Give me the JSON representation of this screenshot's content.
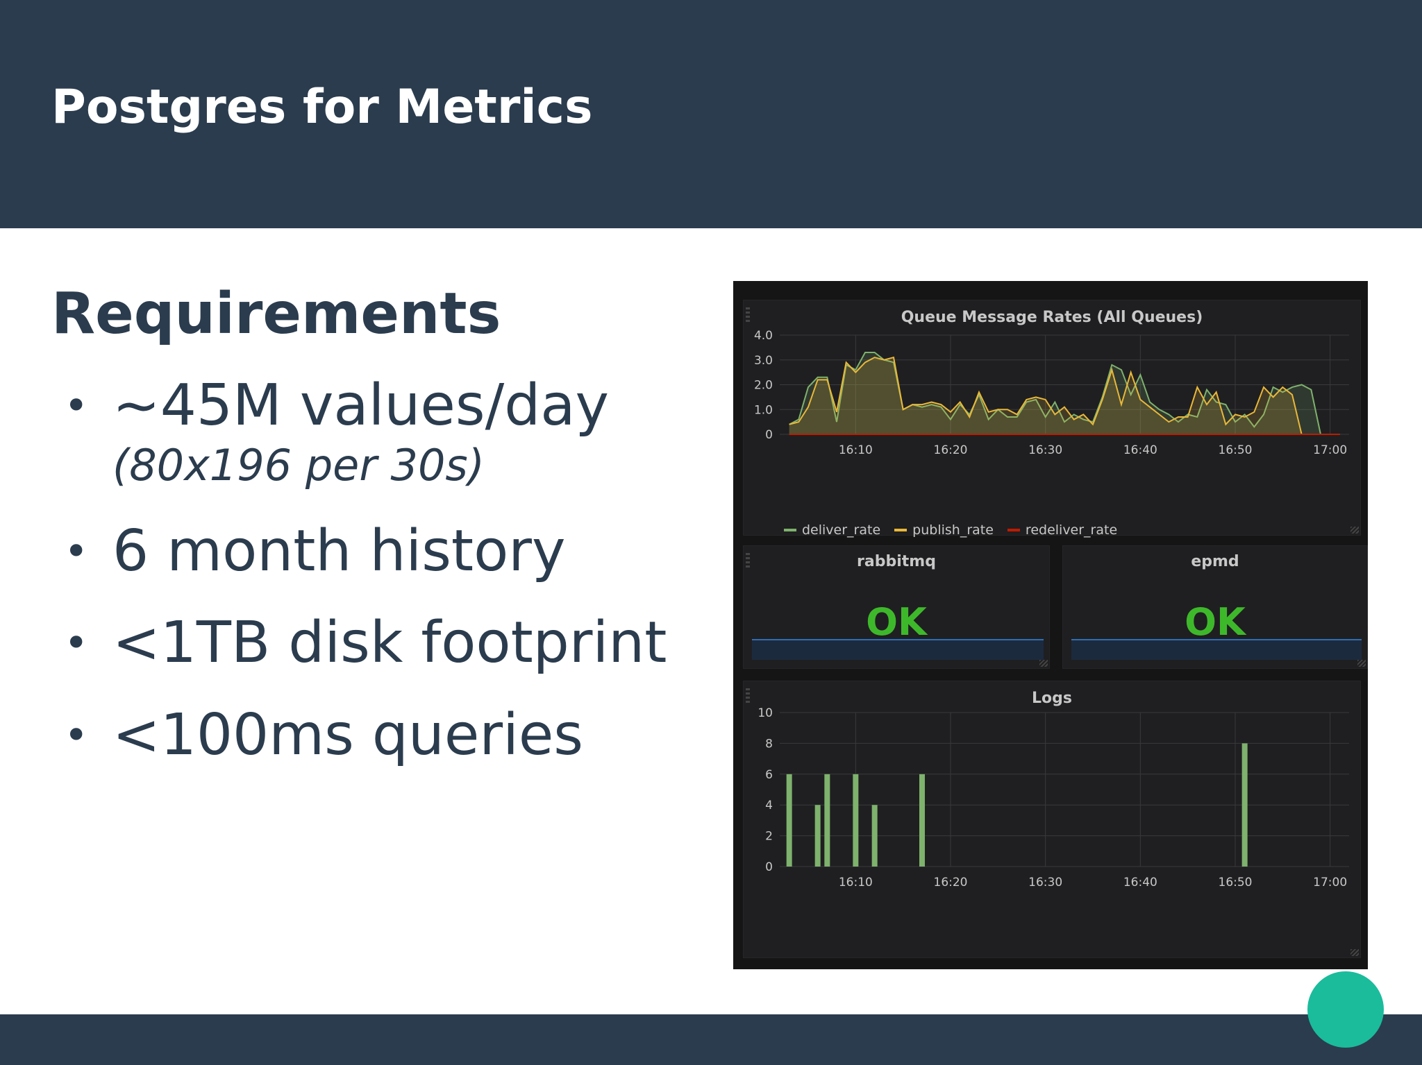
{
  "slide": {
    "title": "Postgres for Metrics",
    "heading": "Requirements",
    "bullets": [
      {
        "text": "~45M values/day",
        "sub": "(80x196 per 30s)"
      },
      {
        "text": "6 month history",
        "sub": ""
      },
      {
        "text": "<1TB disk footprint",
        "sub": ""
      },
      {
        "text": "<100ms queries",
        "sub": ""
      }
    ],
    "bullet_glyph": "•",
    "colors": {
      "band": "#2b3c4e",
      "accent": "#1abc9c",
      "text": "#2b3c4e"
    }
  },
  "dashboard": {
    "colors": {
      "bg": "#151516",
      "panel": "#1f1f21",
      "grid": "#3a3a3d",
      "text": "#c8c8c8",
      "ok": "#3eb82b"
    },
    "queue_panel": {
      "title": "Queue Message Rates (All Queues)"
    },
    "rabbitmq_panel": {
      "title": "rabbitmq",
      "value": "OK"
    },
    "epmd_panel": {
      "title": "epmd",
      "value": "OK"
    },
    "logs_panel": {
      "title": "Logs"
    }
  },
  "chart_data": [
    {
      "type": "area",
      "title": "Queue Message Rates (All Queues)",
      "x": [
        "16:03",
        "16:04",
        "16:05",
        "16:06",
        "16:07",
        "16:08",
        "16:09",
        "16:10",
        "16:11",
        "16:12",
        "16:13",
        "16:14",
        "16:15",
        "16:16",
        "16:17",
        "16:18",
        "16:19",
        "16:20",
        "16:21",
        "16:22",
        "16:23",
        "16:24",
        "16:25",
        "16:26",
        "16:27",
        "16:28",
        "16:29",
        "16:30",
        "16:31",
        "16:32",
        "16:33",
        "16:34",
        "16:35",
        "16:36",
        "16:37",
        "16:38",
        "16:39",
        "16:40",
        "16:41",
        "16:42",
        "16:43",
        "16:44",
        "16:45",
        "16:46",
        "16:47",
        "16:48",
        "16:49",
        "16:50",
        "16:51",
        "16:52",
        "16:53",
        "16:54",
        "16:55",
        "16:56",
        "16:57",
        "16:58",
        "16:59",
        "17:00",
        "17:01"
      ],
      "series": [
        {
          "name": "deliver_rate",
          "color": "#7eb26d",
          "values": [
            0.4,
            0.6,
            1.9,
            2.3,
            2.3,
            0.5,
            2.8,
            2.6,
            3.3,
            3.3,
            3.0,
            2.9,
            1.0,
            1.2,
            1.1,
            1.2,
            1.1,
            0.6,
            1.2,
            0.8,
            1.6,
            0.6,
            1.0,
            0.7,
            0.7,
            1.3,
            1.4,
            0.7,
            1.3,
            0.5,
            0.8,
            0.6,
            0.5,
            1.5,
            2.8,
            2.6,
            1.6,
            2.4,
            1.3,
            1.0,
            0.8,
            0.5,
            0.8,
            0.7,
            1.8,
            1.3,
            1.2,
            0.5,
            0.8,
            0.3,
            0.8,
            1.9,
            1.7,
            1.9,
            2.0,
            1.8,
            0,
            0,
            0
          ]
        },
        {
          "name": "publish_rate",
          "color": "#eab839",
          "values": [
            0.4,
            0.5,
            1.1,
            2.2,
            2.2,
            0.9,
            2.9,
            2.5,
            2.9,
            3.1,
            3.0,
            3.1,
            1.0,
            1.2,
            1.2,
            1.3,
            1.2,
            0.9,
            1.3,
            0.7,
            1.7,
            0.9,
            1.0,
            1.0,
            0.8,
            1.4,
            1.5,
            1.4,
            0.8,
            1.1,
            0.6,
            0.8,
            0.4,
            1.4,
            2.6,
            1.2,
            2.5,
            1.4,
            1.1,
            0.8,
            0.5,
            0.7,
            0.7,
            1.9,
            1.2,
            1.7,
            0.4,
            0.8,
            0.7,
            0.9,
            1.9,
            1.5,
            1.9,
            1.6,
            0,
            0,
            0,
            0,
            0
          ]
        },
        {
          "name": "redeliver_rate",
          "color": "#bf1b00",
          "values": [
            0,
            0,
            0,
            0,
            0,
            0,
            0,
            0,
            0,
            0,
            0,
            0,
            0,
            0,
            0,
            0,
            0,
            0,
            0,
            0,
            0,
            0,
            0,
            0,
            0,
            0,
            0,
            0,
            0,
            0,
            0,
            0,
            0,
            0,
            0,
            0,
            0,
            0,
            0,
            0,
            0,
            0,
            0,
            0,
            0,
            0,
            0,
            0,
            0,
            0,
            0,
            0,
            0,
            0,
            0,
            0,
            0,
            0,
            0
          ]
        }
      ],
      "xticks": [
        "16:10",
        "16:20",
        "16:30",
        "16:40",
        "16:50",
        "17:00"
      ],
      "yticks": [
        "0",
        "1.0",
        "2.0",
        "3.0",
        "4.0"
      ],
      "ylim": [
        0,
        4
      ],
      "grid": true,
      "legend": "bottom-left"
    },
    {
      "type": "bar",
      "title": "Logs",
      "series": [
        {
          "color": "#7eb26d",
          "points": [
            [
              "16:03",
              6
            ],
            [
              "16:06",
              4
            ],
            [
              "16:07",
              6
            ],
            [
              "16:10",
              6
            ],
            [
              "16:12",
              4
            ],
            [
              "16:17",
              6
            ],
            [
              "16:51",
              8
            ]
          ]
        }
      ],
      "xticks": [
        "16:10",
        "16:20",
        "16:30",
        "16:40",
        "16:50",
        "17:00"
      ],
      "yticks": [
        "0",
        "2",
        "4",
        "6",
        "8",
        "10"
      ],
      "ylim": [
        0,
        10
      ],
      "grid": true
    }
  ]
}
